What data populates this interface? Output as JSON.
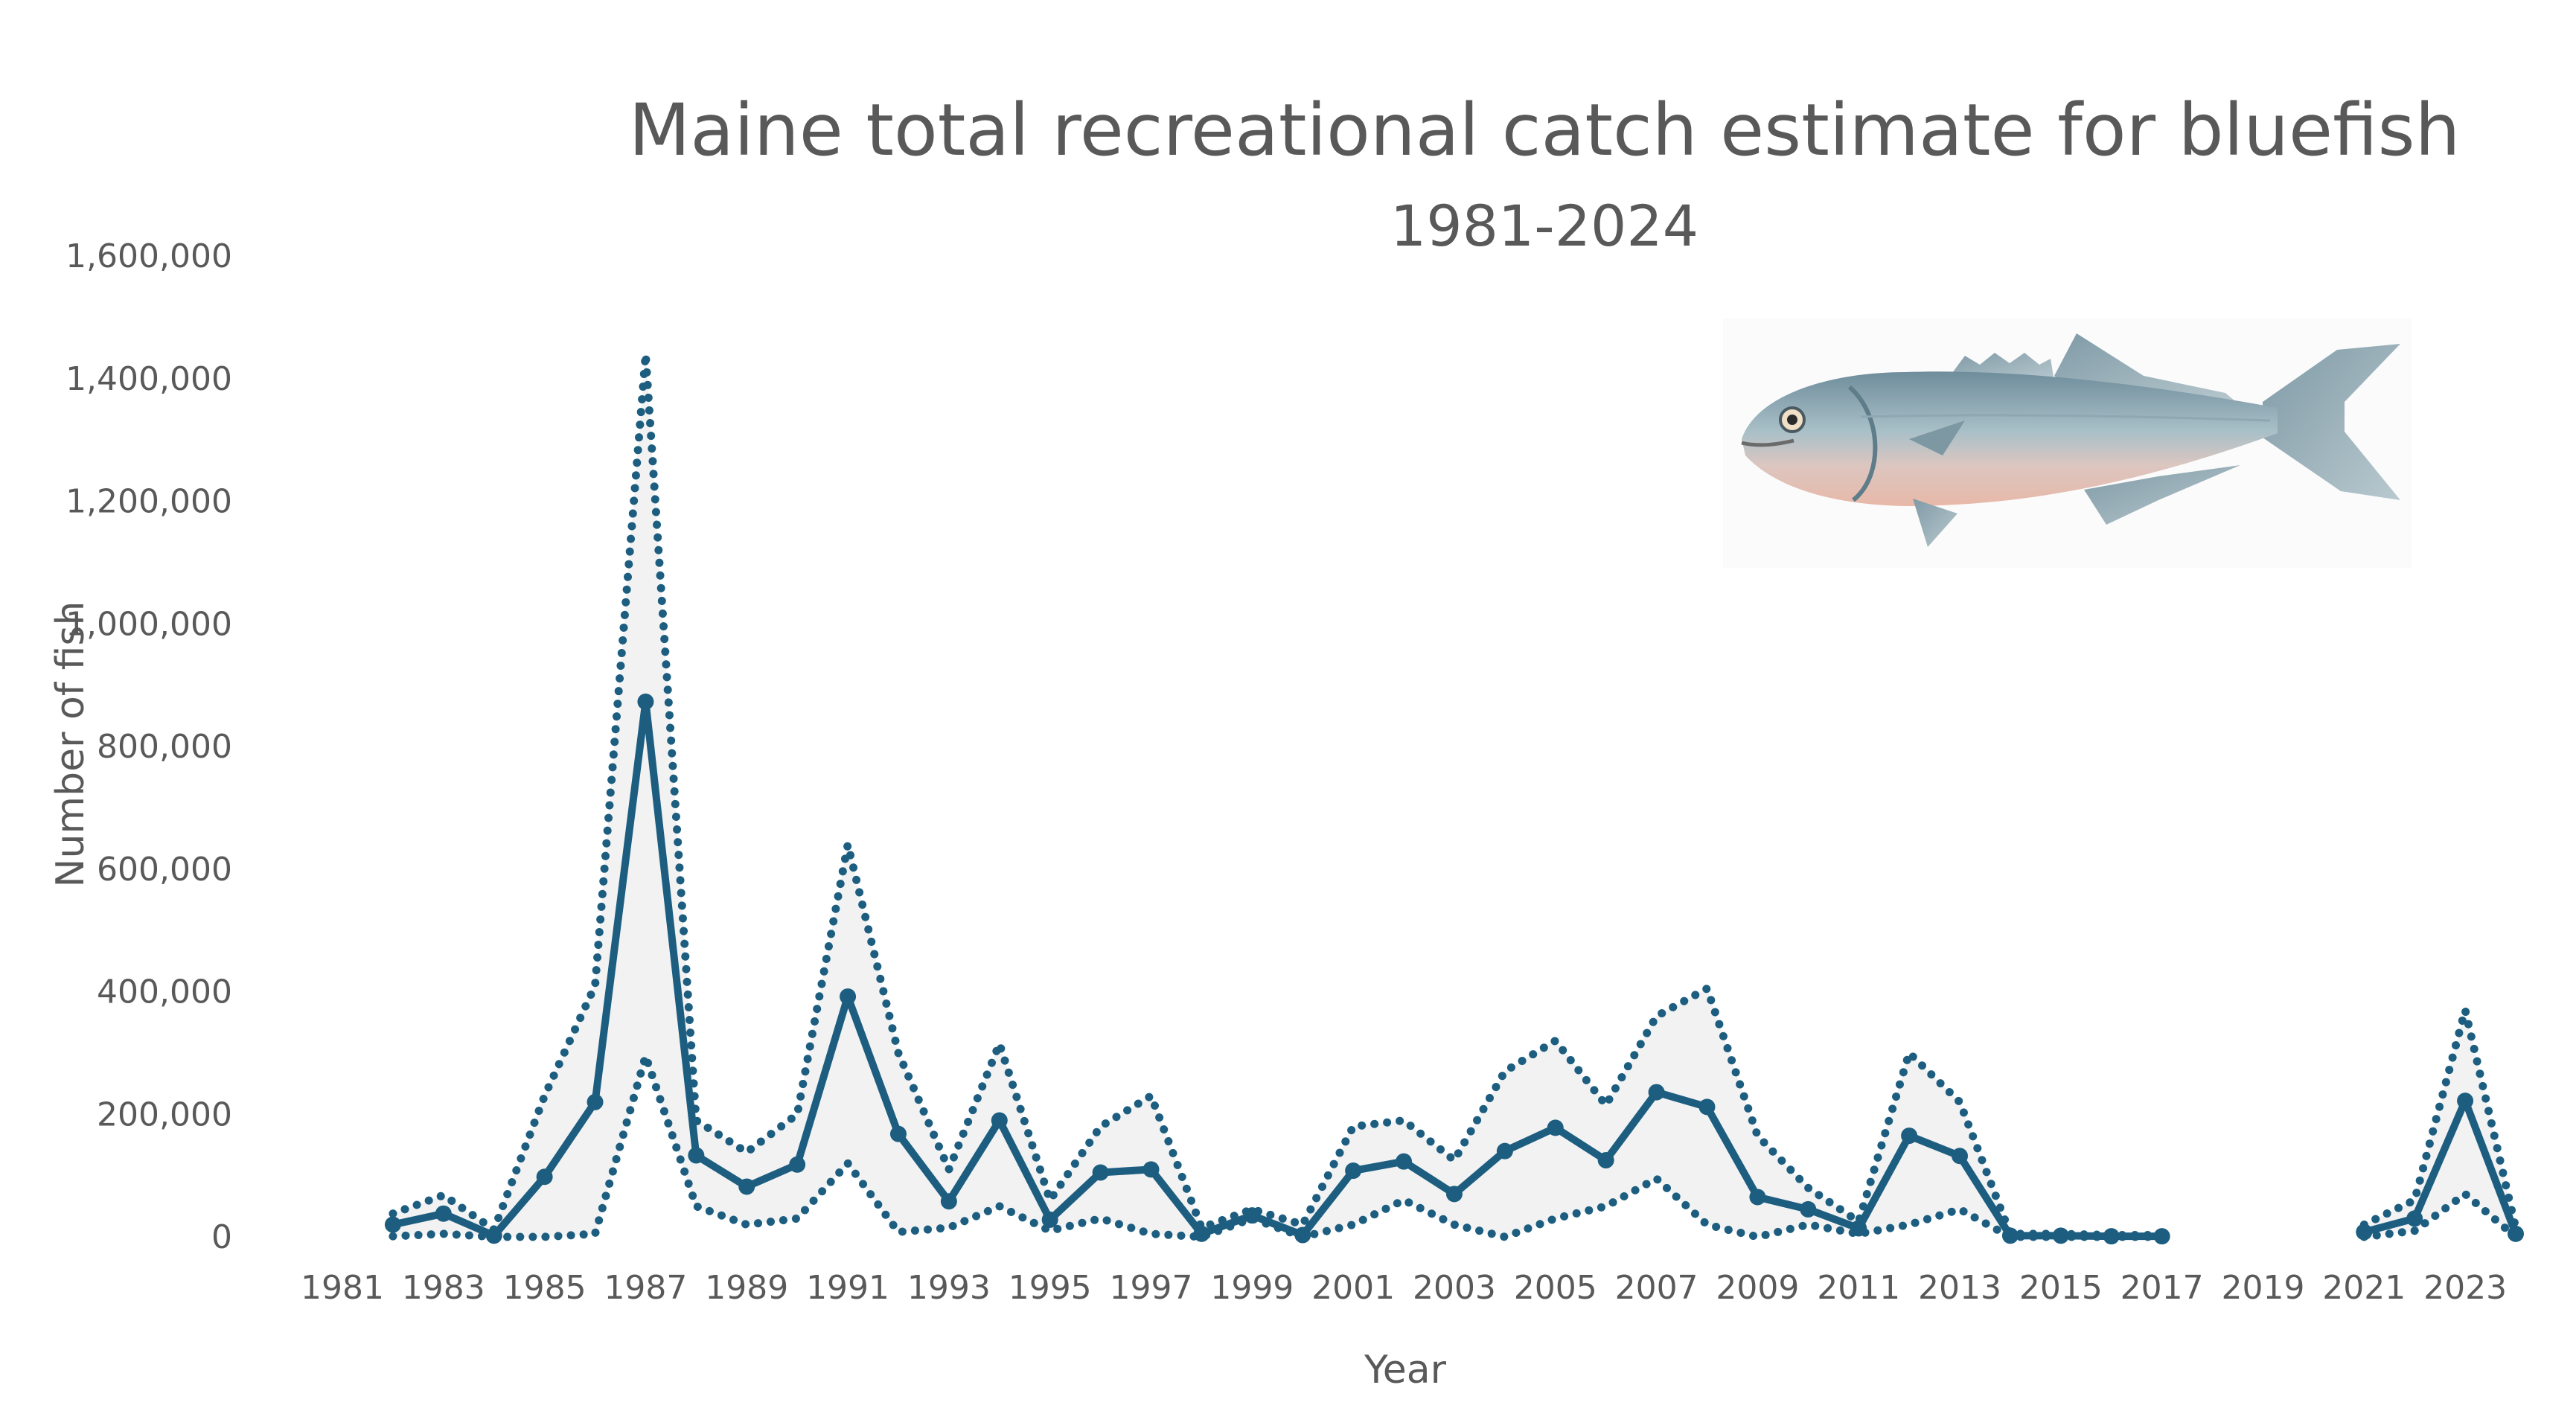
{
  "chart_data": {
    "type": "line",
    "title": "Maine total recreational catch estimate for bluefish",
    "subtitle": "1981-2024",
    "xlabel": "Year",
    "ylabel": "Number of fish",
    "xlim": [
      1981,
      2024
    ],
    "ylim": [
      0,
      1600000
    ],
    "x_tick_labels": [
      "1981",
      "1983",
      "1985",
      "1987",
      "1989",
      "1991",
      "1993",
      "1995",
      "1997",
      "1999",
      "2001",
      "2003",
      "2005",
      "2007",
      "2009",
      "2011",
      "2013",
      "2015",
      "2017",
      "2019",
      "2021",
      "2023"
    ],
    "y_tick_labels": [
      "0",
      "200,000",
      "400,000",
      "600,000",
      "800,000",
      "1,000,000",
      "1,200,000",
      "1,400,000",
      "1,600,000"
    ],
    "y_ticks": [
      0,
      200000,
      400000,
      600000,
      800000,
      1000000,
      1200000,
      1400000,
      1600000
    ],
    "grid": false,
    "legend": "none",
    "x": [
      1982,
      1983,
      1984,
      1985,
      1986,
      1987,
      1988,
      1989,
      1990,
      1991,
      1992,
      1993,
      1994,
      1995,
      1996,
      1997,
      1998,
      1999,
      2000,
      2001,
      2002,
      2003,
      2004,
      2005,
      2006,
      2007,
      2008,
      2009,
      2010,
      2011,
      2012,
      2013,
      2014,
      2015,
      2016,
      2017,
      2021,
      2022,
      2023,
      2024
    ],
    "series": [
      {
        "role": "estimate",
        "style": "solid-with-markers",
        "values": [
          20000,
          38000,
          2000,
          98000,
          220000,
          873000,
          133000,
          82000,
          118000,
          392000,
          168000,
          58000,
          190000,
          28000,
          105000,
          110000,
          5000,
          35000,
          3000,
          108000,
          123000,
          70000,
          140000,
          178000,
          125000,
          236000,
          212000,
          65000,
          45000,
          14000,
          165000,
          132000,
          2000,
          2000,
          1000,
          1000,
          8000,
          30000,
          222000,
          5000
        ]
      },
      {
        "role": "upper-bound",
        "style": "dotted",
        "values": [
          38000,
          68000,
          12000,
          230000,
          410000,
          1440000,
          190000,
          138000,
          200000,
          640000,
          300000,
          110000,
          315000,
          60000,
          180000,
          230000,
          15000,
          45000,
          20000,
          180000,
          190000,
          125000,
          270000,
          320000,
          215000,
          360000,
          405000,
          165000,
          80000,
          25000,
          300000,
          220000,
          5000,
          5000,
          3000,
          3000,
          20000,
          60000,
          370000,
          15000
        ]
      },
      {
        "role": "lower-bound",
        "style": "dotted",
        "values": [
          1000,
          5000,
          0,
          0,
          5000,
          295000,
          50000,
          20000,
          30000,
          120000,
          8000,
          15000,
          50000,
          10000,
          30000,
          5000,
          0,
          30000,
          0,
          20000,
          60000,
          20000,
          0,
          30000,
          50000,
          95000,
          20000,
          0,
          20000,
          5000,
          20000,
          45000,
          0,
          0,
          0,
          0,
          0,
          10000,
          70000,
          0
        ]
      }
    ],
    "colors": {
      "line": "#1d5e80",
      "band": "#f2f2f2",
      "text": "#595959"
    },
    "image_icon": "bluefish-illustration"
  }
}
